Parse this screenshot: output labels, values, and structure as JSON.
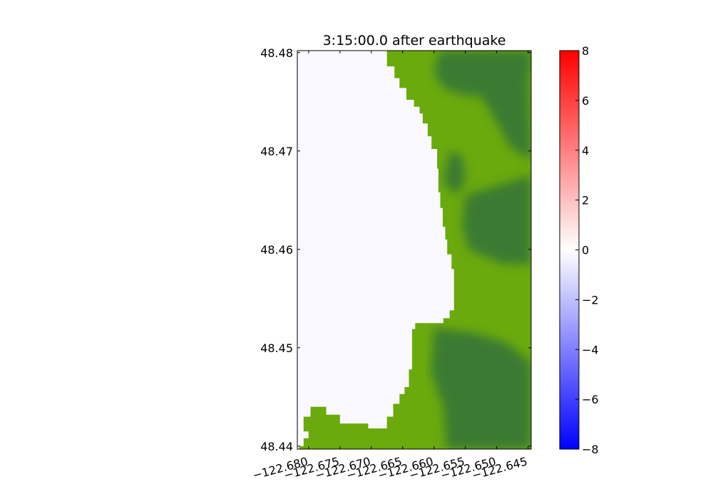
{
  "chart_data": {
    "type": "heatmap",
    "title": "3:15:00.0 after earthquake",
    "xlabel": "",
    "ylabel": "",
    "xlim": [
      -122.6818,
      -122.6445
    ],
    "ylim": [
      48.4397,
      48.4802
    ],
    "x_ticks": [
      -122.68,
      -122.675,
      -122.67,
      -122.665,
      -122.66,
      -122.655,
      -122.65,
      -122.645
    ],
    "x_tick_labels": [
      "−122.680",
      "−122.675",
      "−122.670",
      "−122.665",
      "−122.660",
      "−122.655",
      "−122.650",
      "−122.645"
    ],
    "y_ticks": [
      48.44,
      48.45,
      48.46,
      48.47,
      48.48
    ],
    "y_tick_labels": [
      "48.44",
      "48.45",
      "48.46",
      "48.47",
      "48.48"
    ],
    "colorbar": {
      "range": [
        -8,
        8
      ],
      "ticks": [
        8,
        6,
        4,
        2,
        0,
        -2,
        -4,
        -6,
        -8
      ],
      "tick_labels": [
        "8",
        "6",
        "4",
        "2",
        "0",
        "−2",
        "−4",
        "−6",
        "−8"
      ],
      "colors": {
        "max": "#ff0000",
        "zero": "#ffffff",
        "min": "#0000ff"
      }
    },
    "water_surface_value": -0.2,
    "land_colors": {
      "lowland": "#6aaa0d",
      "upland": "#3a7a33"
    },
    "land_boundary": [
      [
        -122.6675,
        48.4802
      ],
      [
        -122.6675,
        48.4786
      ],
      [
        -122.6663,
        48.4786
      ],
      [
        -122.6663,
        48.4774
      ],
      [
        -122.6655,
        48.4774
      ],
      [
        -122.6655,
        48.4764
      ],
      [
        -122.6644,
        48.4764
      ],
      [
        -122.6644,
        48.4752
      ],
      [
        -122.6632,
        48.4752
      ],
      [
        -122.6632,
        48.4745
      ],
      [
        -122.6623,
        48.4745
      ],
      [
        -122.6623,
        48.4738
      ],
      [
        -122.6618,
        48.4738
      ],
      [
        -122.6618,
        48.4728
      ],
      [
        -122.661,
        48.4728
      ],
      [
        -122.661,
        48.4715
      ],
      [
        -122.6604,
        48.4715
      ],
      [
        -122.6604,
        48.4702
      ],
      [
        -122.6595,
        48.4702
      ],
      [
        -122.6595,
        48.4682
      ],
      [
        -122.6593,
        48.4682
      ],
      [
        -122.6593,
        48.4658
      ],
      [
        -122.659,
        48.4658
      ],
      [
        -122.659,
        48.4642
      ],
      [
        -122.6586,
        48.4642
      ],
      [
        -122.6586,
        48.4623
      ],
      [
        -122.6582,
        48.4623
      ],
      [
        -122.6582,
        48.461
      ],
      [
        -122.6579,
        48.461
      ],
      [
        -122.6579,
        48.4595
      ],
      [
        -122.6572,
        48.4595
      ],
      [
        -122.6572,
        48.458
      ],
      [
        -122.6568,
        48.458
      ],
      [
        -122.6568,
        48.4555
      ],
      [
        -122.6568,
        48.4538
      ],
      [
        -122.6575,
        48.4538
      ],
      [
        -122.6575,
        48.453
      ],
      [
        -122.6585,
        48.453
      ],
      [
        -122.6585,
        48.4525
      ],
      [
        -122.663,
        48.4525
      ],
      [
        -122.663,
        48.4519
      ],
      [
        -122.6635,
        48.4519
      ],
      [
        -122.6635,
        48.4478
      ],
      [
        -122.664,
        48.4478
      ],
      [
        -122.664,
        48.446
      ],
      [
        -122.6647,
        48.446
      ],
      [
        -122.6647,
        48.4453
      ],
      [
        -122.6655,
        48.4453
      ],
      [
        -122.6655,
        48.4443
      ],
      [
        -122.6665,
        48.4443
      ],
      [
        -122.6665,
        48.443
      ],
      [
        -122.6675,
        48.443
      ],
      [
        -122.6675,
        48.4418
      ],
      [
        -122.6705,
        48.4418
      ],
      [
        -122.6705,
        48.4423
      ],
      [
        -122.675,
        48.4423
      ],
      [
        -122.675,
        48.4432
      ],
      [
        -122.6772,
        48.4432
      ],
      [
        -122.6772,
        48.444
      ],
      [
        -122.6797,
        48.444
      ],
      [
        -122.6797,
        48.443
      ],
      [
        -122.6808,
        48.443
      ],
      [
        -122.6808,
        48.4415
      ],
      [
        -122.68,
        48.4415
      ],
      [
        -122.68,
        48.4408
      ],
      [
        -122.6808,
        48.4408
      ],
      [
        -122.6808,
        48.44
      ],
      [
        -122.6815,
        48.44
      ],
      [
        -122.6815,
        48.4397
      ],
      [
        -122.6445,
        48.4397
      ],
      [
        -122.6445,
        48.4802
      ]
    ],
    "upland_regions": [
      [
        [
          -122.659,
          48.4802
        ],
        [
          -122.6445,
          48.4802
        ],
        [
          -122.6445,
          48.478
        ],
        [
          -122.647,
          48.477
        ],
        [
          -122.654,
          48.4755
        ],
        [
          -122.658,
          48.4762
        ],
        [
          -122.66,
          48.4778
        ],
        [
          -122.6595,
          48.4795
        ]
      ],
      [
        [
          -122.653,
          48.478
        ],
        [
          -122.645,
          48.4785
        ],
        [
          -122.6445,
          48.469
        ],
        [
          -122.648,
          48.4705
        ],
        [
          -122.6505,
          48.4735
        ],
        [
          -122.653,
          48.476
        ]
      ],
      [
        [
          -122.6575,
          48.47
        ],
        [
          -122.6555,
          48.4695
        ],
        [
          -122.655,
          48.467
        ],
        [
          -122.6565,
          48.4655
        ],
        [
          -122.6585,
          48.4668
        ]
      ],
      [
        [
          -122.655,
          48.4655
        ],
        [
          -122.6445,
          48.4675
        ],
        [
          -122.6445,
          48.4585
        ],
        [
          -122.649,
          48.4585
        ],
        [
          -122.6545,
          48.46
        ],
        [
          -122.6555,
          48.4625
        ]
      ],
      [
        [
          -122.66,
          48.452
        ],
        [
          -122.6535,
          48.4515
        ],
        [
          -122.6485,
          48.4505
        ],
        [
          -122.6445,
          48.4485
        ],
        [
          -122.6445,
          48.4397
        ],
        [
          -122.658,
          48.4397
        ],
        [
          -122.6585,
          48.444
        ],
        [
          -122.6605,
          48.4475
        ]
      ]
    ]
  }
}
